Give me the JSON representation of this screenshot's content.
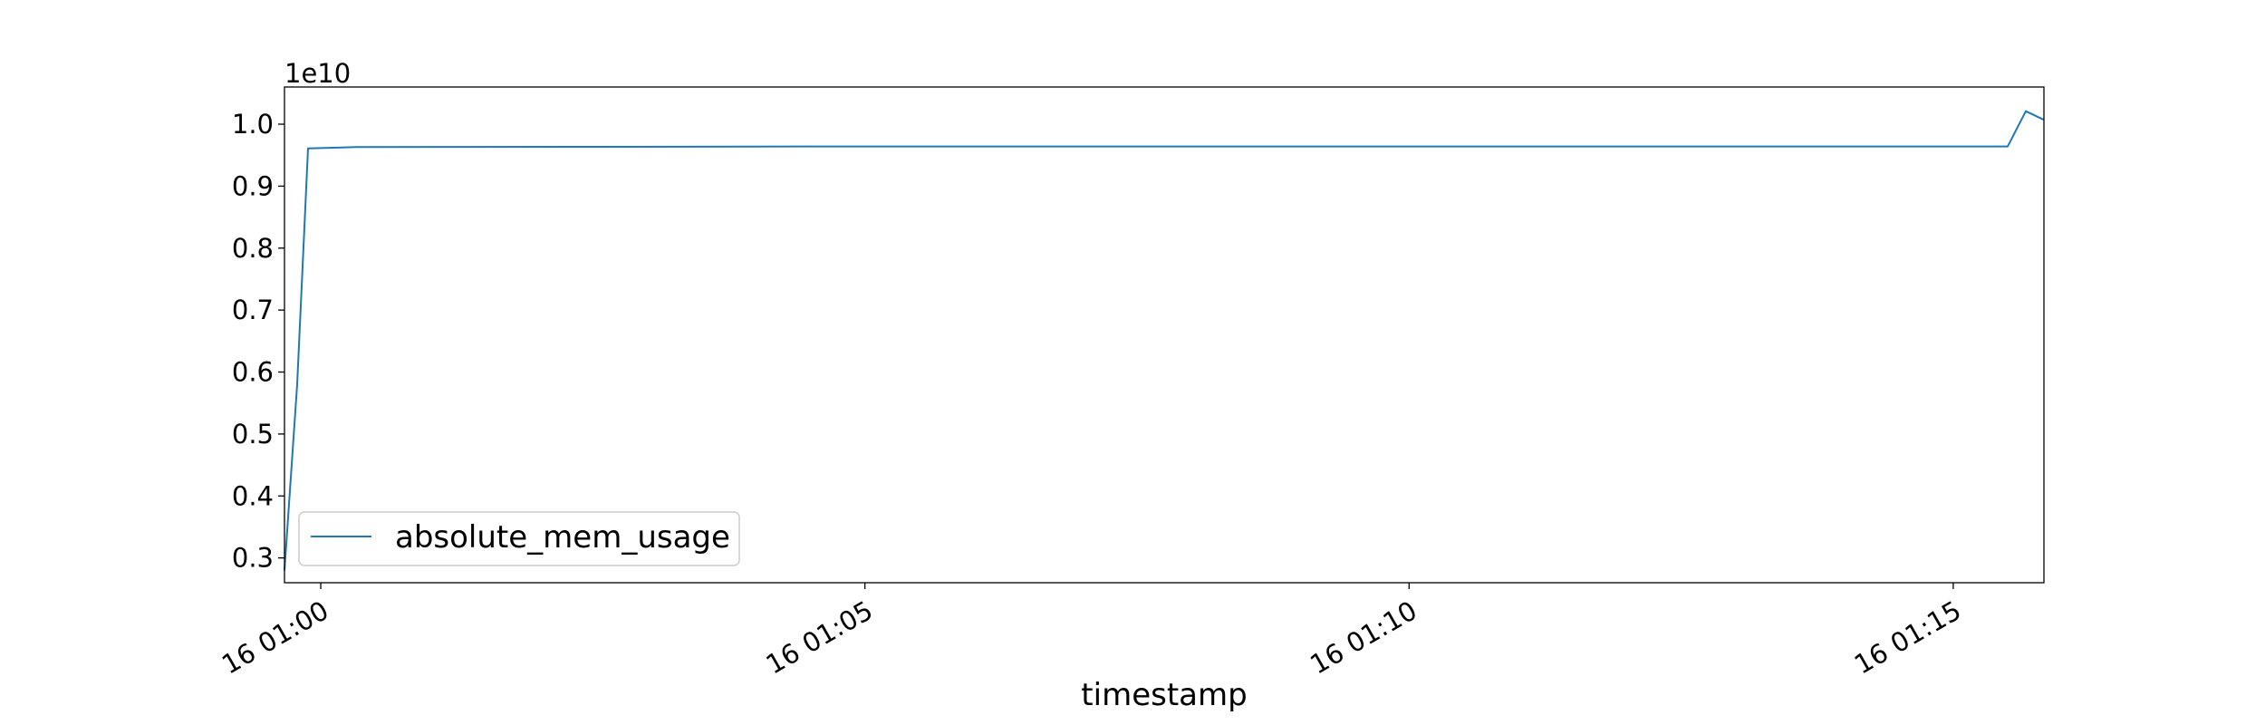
{
  "chart_data": {
    "type": "line",
    "title": "",
    "xlabel": "timestamp",
    "ylabel": "",
    "y_offset_text": "1e10",
    "xlim": [
      "16 00:59:40",
      "16 01:15:50"
    ],
    "ylim": [
      0.26,
      1.06
    ],
    "y_ticks": [
      0.3,
      0.4,
      0.5,
      0.6,
      0.7,
      0.8,
      0.9,
      1.0
    ],
    "y_tick_labels": [
      "0.3",
      "0.4",
      "0.5",
      "0.6",
      "0.7",
      "0.8",
      "0.9",
      "1.0"
    ],
    "x_ticks": [
      "16 01:00",
      "16 01:05",
      "16 01:10",
      "16 01:15"
    ],
    "legend": {
      "position": "lower-left"
    },
    "grid": false,
    "series": [
      {
        "name": "absolute_mem_usage",
        "color": "#1f77b4",
        "points": [
          [
            "16 00:59:40",
            0.28
          ],
          [
            "16 00:59:47",
            0.58
          ],
          [
            "16 00:59:53",
            0.961
          ],
          [
            "16 01:00:20",
            0.963
          ],
          [
            "16 01:05:00",
            0.964
          ],
          [
            "16 01:10:00",
            0.964
          ],
          [
            "16 01:15:30",
            0.964
          ],
          [
            "16 01:15:40",
            1.021
          ],
          [
            "16 01:15:50",
            1.007
          ]
        ]
      }
    ]
  }
}
